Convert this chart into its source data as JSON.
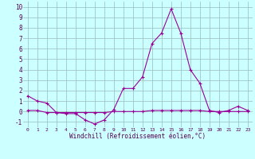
{
  "x": [
    0,
    1,
    2,
    3,
    4,
    5,
    6,
    7,
    8,
    9,
    10,
    11,
    12,
    13,
    14,
    15,
    16,
    17,
    18,
    19,
    20,
    21,
    22,
    23
  ],
  "line1": [
    1.5,
    1.0,
    0.8,
    -0.1,
    -0.2,
    -0.2,
    -0.8,
    -1.2,
    -0.8,
    0.2,
    2.2,
    2.2,
    3.3,
    6.5,
    7.5,
    9.8,
    7.5,
    4.0,
    2.7,
    0.1,
    -0.1,
    0.1,
    0.5,
    0.1
  ],
  "line2": [
    0.1,
    0.1,
    -0.1,
    -0.1,
    -0.1,
    -0.1,
    -0.1,
    -0.1,
    -0.1,
    0.0,
    0.0,
    0.0,
    0.0,
    0.1,
    0.1,
    0.1,
    0.1,
    0.1,
    0.1,
    0.0,
    0.0,
    0.0,
    0.0,
    0.0
  ],
  "color": "#990099",
  "bg_color": "#ccffff",
  "grid_color": "#99bbbb",
  "xlabel": "Windchill (Refroidissement éolien,°C)",
  "ylim": [
    -1.5,
    10.5
  ],
  "yticks": [
    -1,
    0,
    1,
    2,
    3,
    4,
    5,
    6,
    7,
    8,
    9,
    10
  ],
  "xtick_labels": [
    "0",
    "1",
    "2",
    "3",
    "4",
    "5",
    "6",
    "7",
    "8",
    "9",
    "10",
    "11",
    "12",
    "13",
    "14",
    "15",
    "16",
    "17",
    "18",
    "19",
    "20",
    "21",
    "22",
    "23"
  ]
}
